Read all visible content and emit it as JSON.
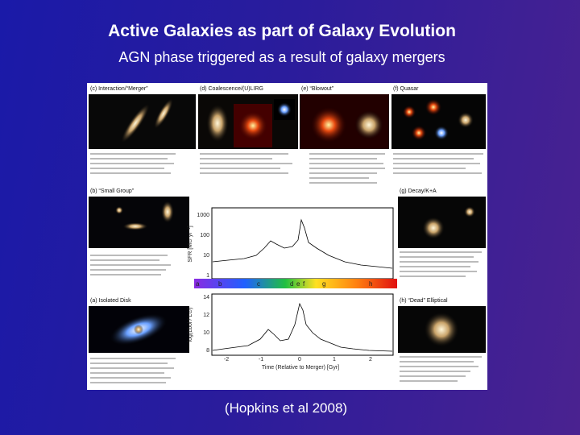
{
  "header": {
    "title": "Active Galaxies as part of Galaxy Evolution",
    "subtitle": "AGN phase triggered as a result of galaxy mergers"
  },
  "figure": {
    "panels": [
      {
        "label": "(c) Interaction/“Merger”"
      },
      {
        "label": "(d) Coalescence/(U)LIRG"
      },
      {
        "label": "(e) “Blowout”"
      },
      {
        "label": "(f) Quasar"
      },
      {
        "label": "(b) “Small Group”"
      },
      {
        "label": "(g) Decay/K+A"
      },
      {
        "label": "(a) Isolated Disk"
      },
      {
        "label": "(h) “Dead” Elliptical"
      }
    ],
    "sfr_plot": {
      "ylabel": "SFR [M⊙ yr⁻¹]",
      "yticks": [
        "1000",
        "100",
        "10",
        "1"
      ]
    },
    "lum_plot": {
      "ylabel": "log(Lbol / L⊙)",
      "yticks": [
        "14",
        "12",
        "10",
        "8"
      ],
      "xticks": [
        "-2",
        "-1",
        "0",
        "1",
        "2"
      ],
      "xlabel": "Time (Relative to Merger) [Gyr]"
    },
    "stage_letters": [
      "a",
      "b",
      "c",
      "d",
      "e",
      "f",
      "g",
      "h"
    ]
  },
  "caption": "(Hopkins et al 2008)"
}
